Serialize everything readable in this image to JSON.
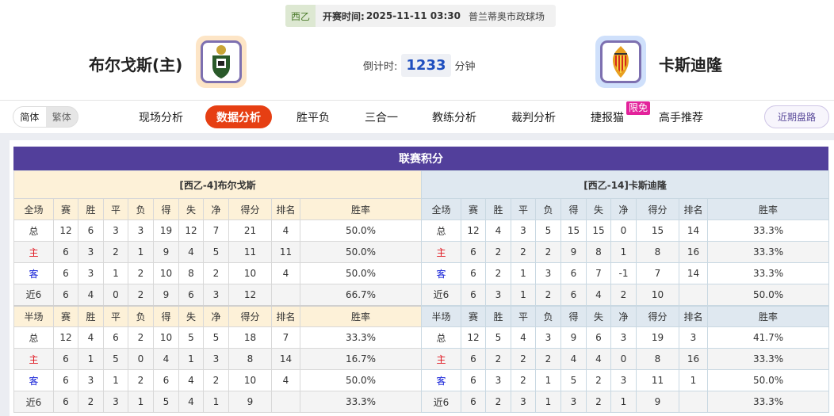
{
  "match": {
    "league": "西乙",
    "time_label": "开赛时间:",
    "time": "2025-11-11 03:30",
    "venue": "普兰蒂奥市政球场",
    "home": "布尔戈斯(主)",
    "away": "卡斯迪隆",
    "countdown_label": "倒计时:",
    "countdown": "1233",
    "countdown_unit": "分钟"
  },
  "colors": {
    "accent": "#523f9b",
    "active_tab": "#e63f13",
    "badge": "#e3229b"
  },
  "nav": {
    "lang": [
      "简体",
      "繁体"
    ],
    "items": [
      "现场分析",
      "数据分析",
      "胜平负",
      "三合一",
      "教练分析",
      "裁判分析",
      "捷报猫",
      "高手推荐"
    ],
    "active": "数据分析",
    "badge": "限免",
    "recent": "近期盘路"
  },
  "standings": {
    "title": "联赛积分",
    "home": {
      "header": "[西乙-4]布尔戈斯",
      "full_cols": [
        "全场",
        "赛",
        "胜",
        "平",
        "负",
        "得",
        "失",
        "净",
        "得分",
        "排名",
        "胜率"
      ],
      "full": [
        [
          "总",
          "12",
          "6",
          "3",
          "3",
          "19",
          "12",
          "7",
          "21",
          "4",
          "50.0%"
        ],
        [
          "主",
          "6",
          "3",
          "2",
          "1",
          "9",
          "4",
          "5",
          "11",
          "11",
          "50.0%"
        ],
        [
          "客",
          "6",
          "3",
          "1",
          "2",
          "10",
          "8",
          "2",
          "10",
          "4",
          "50.0%"
        ],
        [
          "近6",
          "6",
          "4",
          "0",
          "2",
          "9",
          "6",
          "3",
          "12",
          "",
          "66.7%"
        ]
      ],
      "half_cols": [
        "半场",
        "赛",
        "胜",
        "平",
        "负",
        "得",
        "失",
        "净",
        "得分",
        "排名",
        "胜率"
      ],
      "half": [
        [
          "总",
          "12",
          "4",
          "6",
          "2",
          "10",
          "5",
          "5",
          "18",
          "7",
          "33.3%"
        ],
        [
          "主",
          "6",
          "1",
          "5",
          "0",
          "4",
          "1",
          "3",
          "8",
          "14",
          "16.7%"
        ],
        [
          "客",
          "6",
          "3",
          "1",
          "2",
          "6",
          "4",
          "2",
          "10",
          "4",
          "50.0%"
        ],
        [
          "近6",
          "6",
          "2",
          "3",
          "1",
          "5",
          "4",
          "1",
          "9",
          "",
          "33.3%"
        ]
      ]
    },
    "away": {
      "header": "[西乙-14]卡斯迪隆",
      "full_cols": [
        "全场",
        "赛",
        "胜",
        "平",
        "负",
        "得",
        "失",
        "净",
        "得分",
        "排名",
        "胜率"
      ],
      "full": [
        [
          "总",
          "12",
          "4",
          "3",
          "5",
          "15",
          "15",
          "0",
          "15",
          "14",
          "33.3%"
        ],
        [
          "主",
          "6",
          "2",
          "2",
          "2",
          "9",
          "8",
          "1",
          "8",
          "16",
          "33.3%"
        ],
        [
          "客",
          "6",
          "2",
          "1",
          "3",
          "6",
          "7",
          "-1",
          "7",
          "14",
          "33.3%"
        ],
        [
          "近6",
          "6",
          "3",
          "1",
          "2",
          "6",
          "4",
          "2",
          "10",
          "",
          "50.0%"
        ]
      ],
      "half_cols": [
        "半场",
        "赛",
        "胜",
        "平",
        "负",
        "得",
        "失",
        "净",
        "得分",
        "排名",
        "胜率"
      ],
      "half": [
        [
          "总",
          "12",
          "5",
          "4",
          "3",
          "9",
          "6",
          "3",
          "19",
          "3",
          "41.7%"
        ],
        [
          "主",
          "6",
          "2",
          "2",
          "2",
          "4",
          "4",
          "0",
          "8",
          "16",
          "33.3%"
        ],
        [
          "客",
          "6",
          "3",
          "2",
          "1",
          "5",
          "2",
          "3",
          "11",
          "1",
          "50.0%"
        ],
        [
          "近6",
          "6",
          "2",
          "3",
          "1",
          "3",
          "2",
          "1",
          "9",
          "",
          "33.3%"
        ]
      ]
    }
  }
}
